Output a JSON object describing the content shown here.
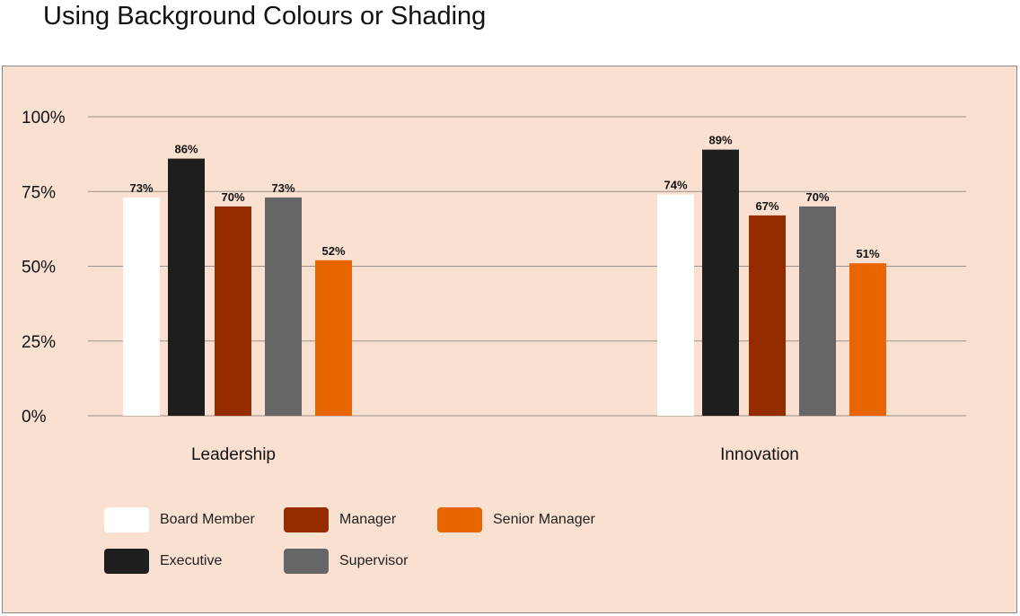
{
  "page": {
    "title": "Using Background Colours or Shading",
    "panel_background": "#fae0d0"
  },
  "chart_data": {
    "type": "bar",
    "categories": [
      "Leadership",
      "Innovation"
    ],
    "ylim": [
      0,
      100
    ],
    "yticks": [
      0,
      25,
      50,
      75,
      100
    ],
    "ytick_labels": [
      "0%",
      "25%",
      "50%",
      "75%",
      "100%"
    ],
    "grid": true,
    "legend_position": "bottom-left",
    "series": [
      {
        "name": "Board Member",
        "color": "#ffffff",
        "values": [
          73,
          74
        ],
        "labels": [
          "73%",
          "74%"
        ]
      },
      {
        "name": "Executive",
        "color": "#1e1e1e",
        "values": [
          86,
          89
        ],
        "labels": [
          "86%",
          "89%"
        ]
      },
      {
        "name": "Manager",
        "color": "#952c00",
        "values": [
          70,
          67
        ],
        "labels": [
          "70%",
          "67%"
        ]
      },
      {
        "name": "Supervisor",
        "color": "#666666",
        "values": [
          73,
          70
        ],
        "labels": [
          "73%",
          "70%"
        ]
      },
      {
        "name": "Senior Manager",
        "color": "#e86500",
        "values": [
          52,
          51
        ],
        "labels": [
          "52%",
          "51%"
        ]
      }
    ]
  }
}
